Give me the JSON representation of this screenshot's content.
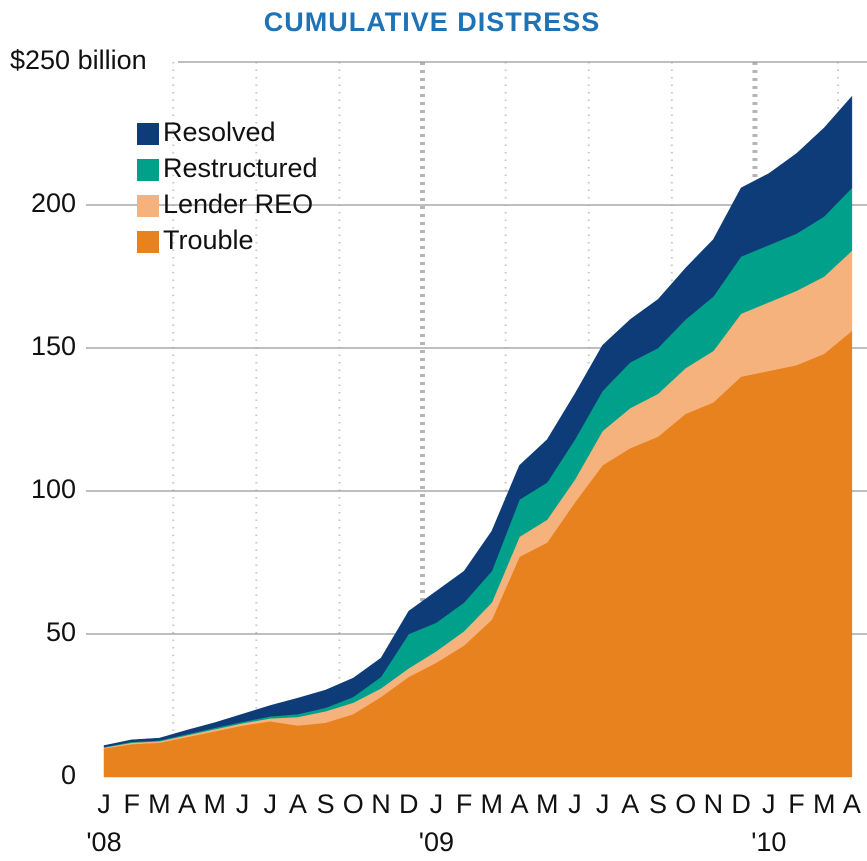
{
  "chart_data": {
    "type": "stacked_area",
    "title": "CUMULATIVE DISTRESS",
    "categories": [
      "J",
      "F",
      "M",
      "A",
      "M",
      "J",
      "J",
      "A",
      "S",
      "O",
      "N",
      "D",
      "J",
      "F",
      "M",
      "A",
      "M",
      "J",
      "J",
      "A",
      "S",
      "O",
      "N",
      "D",
      "J",
      "F",
      "M",
      "A"
    ],
    "years": [
      "'08",
      null,
      null,
      null,
      null,
      null,
      null,
      null,
      null,
      null,
      null,
      null,
      "'09",
      null,
      null,
      null,
      null,
      null,
      null,
      null,
      null,
      null,
      null,
      null,
      "'10",
      null,
      null,
      null
    ],
    "series": [
      {
        "name": "Resolved",
        "color": "#0d3c78",
        "values": [
          0.5,
          0.7,
          0.8,
          1.4,
          1.8,
          2.7,
          3.8,
          5.6,
          6.2,
          6.6,
          6.6,
          8,
          11,
          11,
          14,
          12,
          15,
          16,
          16,
          15,
          17,
          18,
          20,
          24,
          25,
          28,
          31,
          32
        ]
      },
      {
        "name": "Restructured",
        "color": "#00a08a",
        "values": [
          0.2,
          0.3,
          0.3,
          0.4,
          0.5,
          0.5,
          0.7,
          1,
          1.2,
          2,
          4,
          12,
          10,
          10,
          11,
          13,
          13,
          14,
          14,
          16,
          16,
          17,
          19,
          20,
          20,
          20,
          21,
          22
        ]
      },
      {
        "name": "Lender REO",
        "color": "#f5b27c",
        "values": [
          0.3,
          0.5,
          0.5,
          0.6,
          0.7,
          0.8,
          1,
          3,
          4,
          4,
          3,
          3,
          4,
          5,
          6,
          7,
          8,
          8,
          12,
          14,
          15,
          16,
          18,
          22,
          24,
          26,
          27,
          28
        ]
      },
      {
        "name": "Trouble",
        "color": "#e8821e",
        "values": [
          10,
          11.5,
          12,
          14,
          16,
          18,
          19.5,
          18,
          19,
          22,
          28,
          35,
          40,
          46,
          55,
          77,
          82,
          96,
          109,
          115,
          119,
          127,
          131,
          140,
          142,
          144,
          148,
          156
        ]
      }
    ],
    "ylim": [
      0,
      250
    ],
    "yticks": [
      0,
      50,
      100,
      150,
      200,
      {
        "value": 250,
        "label": "$250 billion"
      }
    ],
    "grid": true
  }
}
